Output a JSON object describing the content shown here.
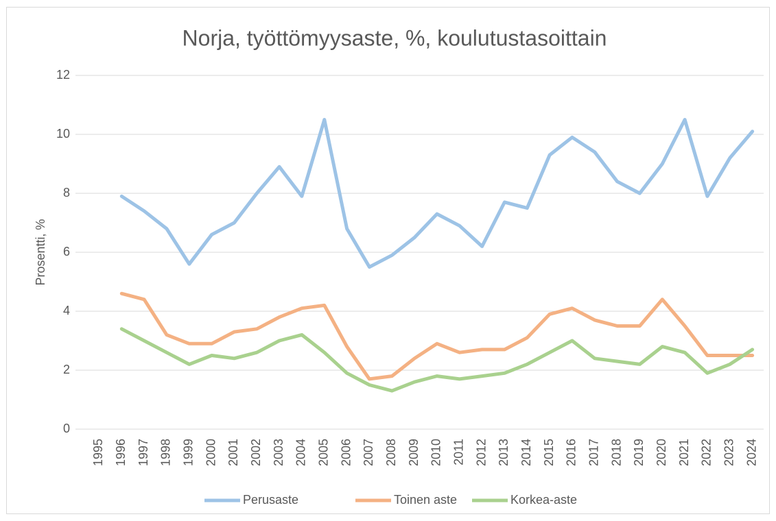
{
  "chart_data": {
    "type": "line",
    "title": "Norja, työttömyysaste, %, koulutustasoittain",
    "y_label": "Prosentti, %",
    "categories": [
      "1995",
      "1996",
      "1997",
      "1998",
      "1999",
      "2000",
      "2001",
      "2002",
      "2003",
      "2004",
      "2005",
      "2006",
      "2007",
      "2008",
      "2009",
      "2010",
      "2011",
      "2012",
      "2013",
      "2014",
      "2015",
      "2016",
      "2017",
      "2018",
      "2019",
      "2020",
      "2021",
      "2022",
      "2023",
      "2024"
    ],
    "series": [
      {
        "name": "Perusaste",
        "color": "#9dc3e6",
        "values": [
          null,
          7.9,
          7.4,
          6.8,
          5.6,
          6.6,
          7.0,
          8.0,
          8.9,
          7.9,
          10.5,
          6.8,
          5.5,
          5.9,
          6.5,
          7.3,
          6.9,
          6.2,
          7.7,
          7.5,
          9.3,
          9.9,
          9.4,
          8.4,
          8.0,
          9.0,
          10.5,
          7.9,
          9.2,
          10.1
        ]
      },
      {
        "name": "Toinen aste",
        "color": "#f4b183",
        "values": [
          null,
          4.6,
          4.4,
          3.2,
          2.9,
          2.9,
          3.3,
          3.4,
          3.8,
          4.1,
          4.2,
          2.8,
          1.7,
          1.8,
          2.4,
          2.9,
          2.6,
          2.7,
          2.7,
          3.1,
          3.9,
          4.1,
          3.7,
          3.5,
          3.5,
          4.4,
          3.5,
          2.5,
          2.5,
          2.5
        ]
      },
      {
        "name": "Korkea-aste",
        "color": "#a9d18e",
        "values": [
          null,
          3.4,
          3.0,
          2.6,
          2.2,
          2.5,
          2.4,
          2.6,
          3.0,
          3.2,
          2.6,
          1.9,
          1.5,
          1.3,
          1.6,
          1.8,
          1.7,
          1.8,
          1.9,
          2.2,
          2.6,
          3.0,
          2.4,
          2.3,
          2.2,
          2.8,
          2.6,
          1.9,
          2.2,
          2.7
        ]
      }
    ],
    "ylim": [
      0,
      12
    ],
    "yticks": [
      0,
      2,
      4,
      6,
      8,
      10,
      12
    ],
    "grid": true,
    "legend": "bottom"
  }
}
